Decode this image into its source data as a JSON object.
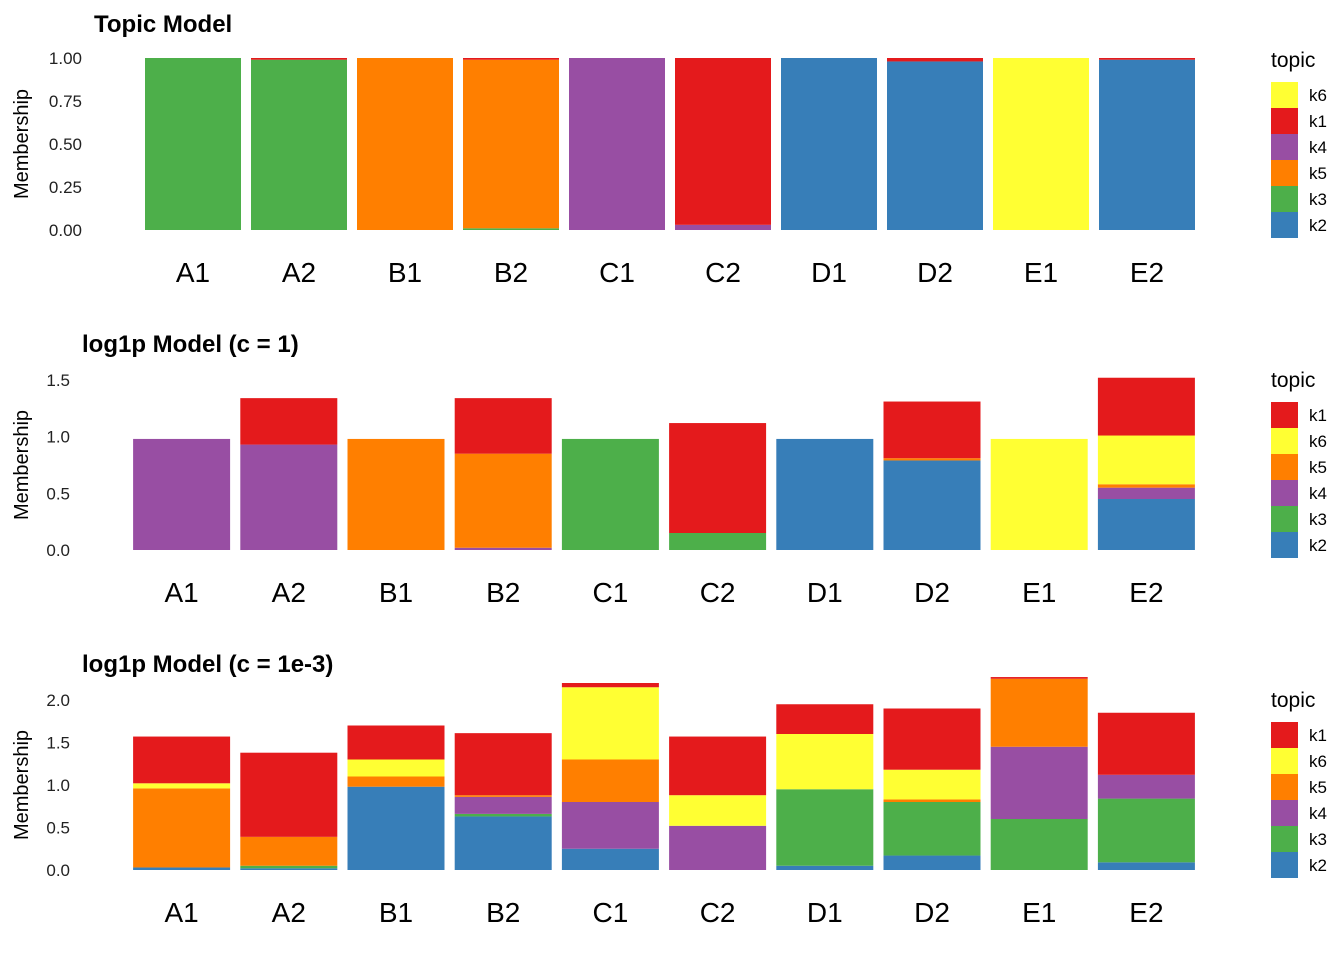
{
  "chart_data": [
    {
      "type": "bar",
      "title": "Topic Model",
      "ylabel": "Membership",
      "ylim": [
        0,
        1
      ],
      "yticks": [
        "1.00",
        "0.75",
        "0.50",
        "0.25",
        "0.00"
      ],
      "categories": [
        "A1",
        "A2",
        "B1",
        "B2",
        "C1",
        "C2",
        "D1",
        "D2",
        "E1",
        "E2"
      ],
      "legend": {
        "title": "topic",
        "position": "right",
        "entries": [
          {
            "name": "k6",
            "color": "#FFFF33"
          },
          {
            "name": "k1",
            "color": "#E41A1C"
          },
          {
            "name": "k4",
            "color": "#984EA3"
          },
          {
            "name": "k5",
            "color": "#FF7F00"
          },
          {
            "name": "k3",
            "color": "#4DAF4A"
          },
          {
            "name": "k2",
            "color": "#377EB8"
          }
        ]
      },
      "series": [
        {
          "name": "k2",
          "color": "#377EB8",
          "values": [
            0,
            0,
            0,
            0,
            0,
            0,
            1.0,
            0.98,
            0,
            0.99
          ]
        },
        {
          "name": "k3",
          "color": "#4DAF4A",
          "values": [
            1.0,
            0.99,
            0,
            0.01,
            0,
            0,
            0,
            0,
            0,
            0
          ]
        },
        {
          "name": "k5",
          "color": "#FF7F00",
          "values": [
            0,
            0,
            1.0,
            0.98,
            0,
            0,
            0,
            0,
            0,
            0
          ]
        },
        {
          "name": "k4",
          "color": "#984EA3",
          "values": [
            0,
            0,
            0,
            0,
            1.0,
            0.03,
            0,
            0,
            0,
            0
          ]
        },
        {
          "name": "k1",
          "color": "#E41A1C",
          "values": [
            0,
            0.01,
            0,
            0.01,
            0,
            0.97,
            0,
            0.02,
            0,
            0.01
          ]
        },
        {
          "name": "k6",
          "color": "#FFFF33",
          "values": [
            0,
            0,
            0,
            0,
            0,
            0,
            0,
            0,
            1.0,
            0
          ]
        }
      ]
    },
    {
      "type": "bar",
      "title": "log1p Model (c = 1)",
      "ylabel": "Membership",
      "ylim": [
        0,
        1.5
      ],
      "yticks": [
        "1.5",
        "1.0",
        "0.5",
        "0.0"
      ],
      "categories": [
        "A1",
        "A2",
        "B1",
        "B2",
        "C1",
        "C2",
        "D1",
        "D2",
        "E1",
        "E2"
      ],
      "legend": {
        "title": "topic",
        "position": "right",
        "entries": [
          {
            "name": "k1",
            "color": "#E41A1C"
          },
          {
            "name": "k6",
            "color": "#FFFF33"
          },
          {
            "name": "k5",
            "color": "#FF7F00"
          },
          {
            "name": "k4",
            "color": "#984EA3"
          },
          {
            "name": "k3",
            "color": "#4DAF4A"
          },
          {
            "name": "k2",
            "color": "#377EB8"
          }
        ]
      },
      "series": [
        {
          "name": "k2",
          "color": "#377EB8",
          "values": [
            0,
            0,
            0,
            0,
            0,
            0,
            0.98,
            0.79,
            0,
            0.45
          ]
        },
        {
          "name": "k3",
          "color": "#4DAF4A",
          "values": [
            0,
            0,
            0,
            0,
            0.98,
            0.15,
            0,
            0,
            0,
            0
          ]
        },
        {
          "name": "k4",
          "color": "#984EA3",
          "values": [
            0.98,
            0.93,
            0,
            0.02,
            0,
            0,
            0,
            0,
            0,
            0.1
          ]
        },
        {
          "name": "k5",
          "color": "#FF7F00",
          "values": [
            0,
            0,
            0.98,
            0.83,
            0,
            0,
            0,
            0.02,
            0,
            0.03
          ]
        },
        {
          "name": "k6",
          "color": "#FFFF33",
          "values": [
            0,
            0,
            0,
            0,
            0,
            0,
            0,
            0,
            0.98,
            0.43
          ]
        },
        {
          "name": "k1",
          "color": "#E41A1C",
          "values": [
            0,
            0.41,
            0,
            0.49,
            0,
            0.97,
            0,
            0.5,
            0,
            0.51
          ]
        }
      ]
    },
    {
      "type": "bar",
      "title": "log1p Model (c = 1e-3)",
      "ylabel": "Membership",
      "ylim": [
        0,
        2.0
      ],
      "yticks": [
        "2.0",
        "1.5",
        "1.0",
        "0.5",
        "0.0"
      ],
      "categories": [
        "A1",
        "A2",
        "B1",
        "B2",
        "C1",
        "C2",
        "D1",
        "D2",
        "E1",
        "E2"
      ],
      "legend": {
        "title": "topic",
        "position": "right",
        "entries": [
          {
            "name": "k1",
            "color": "#E41A1C"
          },
          {
            "name": "k6",
            "color": "#FFFF33"
          },
          {
            "name": "k5",
            "color": "#FF7F00"
          },
          {
            "name": "k4",
            "color": "#984EA3"
          },
          {
            "name": "k3",
            "color": "#4DAF4A"
          },
          {
            "name": "k2",
            "color": "#377EB8"
          }
        ]
      },
      "series": [
        {
          "name": "k2",
          "color": "#377EB8",
          "values": [
            0.03,
            0.02,
            0.98,
            0.63,
            0.25,
            0,
            0.05,
            0.17,
            0,
            0.09
          ]
        },
        {
          "name": "k3",
          "color": "#4DAF4A",
          "values": [
            0,
            0.03,
            0,
            0.03,
            0,
            0,
            0.9,
            0.63,
            0.6,
            0.75
          ]
        },
        {
          "name": "k4",
          "color": "#984EA3",
          "values": [
            0,
            0,
            0,
            0.2,
            0.55,
            0.52,
            0,
            0,
            0.85,
            0.28
          ]
        },
        {
          "name": "k5",
          "color": "#FF7F00",
          "values": [
            0.93,
            0.34,
            0.12,
            0.02,
            0.5,
            0,
            0,
            0.03,
            0.8,
            0
          ]
        },
        {
          "name": "k6",
          "color": "#FFFF33",
          "values": [
            0.06,
            0,
            0.2,
            0,
            0.85,
            0.36,
            0.65,
            0.35,
            0,
            0
          ]
        },
        {
          "name": "k1",
          "color": "#E41A1C",
          "values": [
            0.55,
            0.99,
            0.4,
            0.73,
            0.05,
            0.69,
            0.35,
            0.72,
            0.02,
            0.73
          ]
        }
      ]
    }
  ]
}
